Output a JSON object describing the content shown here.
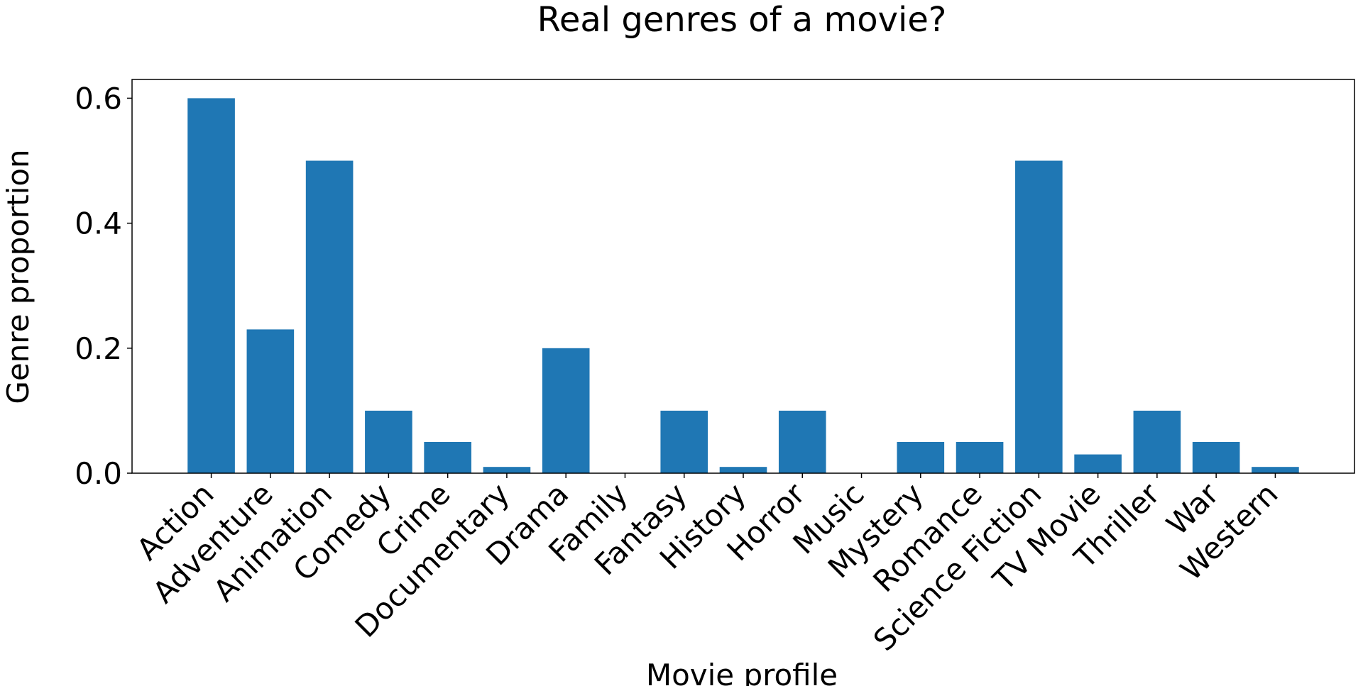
{
  "chart_data": {
    "type": "bar",
    "title": "Real genres of a movie?",
    "xlabel": "Movie profile",
    "ylabel": "Genre proportion",
    "categories": [
      "Action",
      "Adventure",
      "Animation",
      "Comedy",
      "Crime",
      "Documentary",
      "Drama",
      "Family",
      "Fantasy",
      "History",
      "Horror",
      "Music",
      "Mystery",
      "Romance",
      "Science Fiction",
      "TV Movie",
      "Thriller",
      "War",
      "Western"
    ],
    "values": [
      0.6,
      0.23,
      0.5,
      0.1,
      0.05,
      0.01,
      0.2,
      0.0,
      0.1,
      0.01,
      0.1,
      0.0,
      0.05,
      0.05,
      0.5,
      0.03,
      0.1,
      0.05,
      0.01
    ],
    "ylim": [
      0,
      0.63
    ],
    "yticks": [
      0.0,
      0.2,
      0.4,
      0.6
    ],
    "ytick_labels": [
      "0.0",
      "0.2",
      "0.4",
      "0.6"
    ],
    "grid": false,
    "bar_color": "#1f77b4",
    "xtick_rotation": -45
  }
}
